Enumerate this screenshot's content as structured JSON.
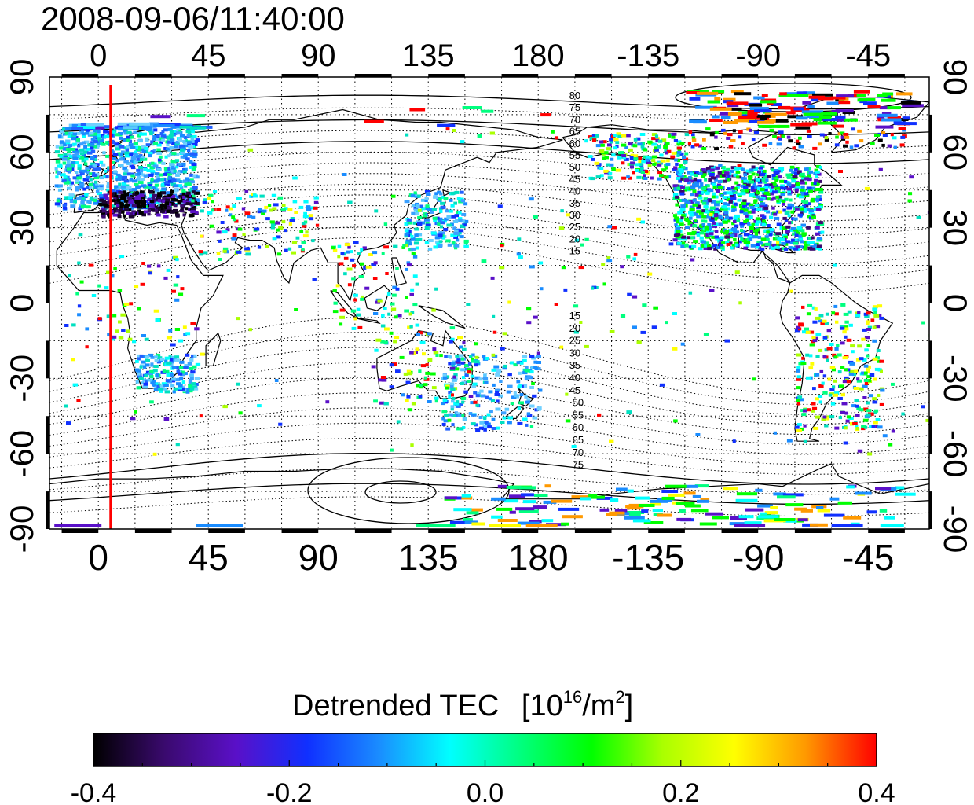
{
  "timestamp": "2008-09-06/11:40:00",
  "map": {
    "lon_ticks_top": [
      "0",
      "45",
      "90",
      "135",
      "180",
      "-135",
      "-90",
      "-45"
    ],
    "lon_ticks_bottom": [
      "0",
      "45",
      "90",
      "135",
      "180",
      "-135",
      "-90",
      "-45"
    ],
    "lat_ticks": [
      "90",
      "60",
      "30",
      "0",
      "-30",
      "-60",
      "-90"
    ],
    "lon_range": [
      -20,
      340
    ],
    "lat_range": [
      -90,
      90
    ],
    "grid": "dotted every 15 degrees",
    "marker_line_longitude": 5,
    "marker_line_color": "#ff0000",
    "contour_labels_north": [
      "80",
      "75",
      "70",
      "65",
      "60",
      "55",
      "50",
      "45",
      "40",
      "35",
      "30",
      "25",
      "20",
      "15"
    ],
    "contour_labels_south": [
      "15",
      "20",
      "25",
      "30",
      "35",
      "40",
      "45",
      "50",
      "55",
      "60",
      "65",
      "70",
      "75"
    ]
  },
  "colorbar": {
    "title": "Detrended TEC",
    "unit_base": "[10",
    "unit_exp": "16",
    "unit_mid": "/m",
    "unit_exp2": "2",
    "unit_end": "]",
    "tick_labels": [
      "-0.4",
      "-0.2",
      "0.0",
      "0.2",
      "0.4"
    ],
    "range": [
      -0.4,
      0.4
    ],
    "colors": [
      "#000000",
      "#3a0a6e",
      "#5a10c8",
      "#1030ff",
      "#1a8cff",
      "#00ffff",
      "#00ff7f",
      "#00ff00",
      "#aaff00",
      "#ffff00",
      "#ff9900",
      "#ff0000"
    ]
  }
}
